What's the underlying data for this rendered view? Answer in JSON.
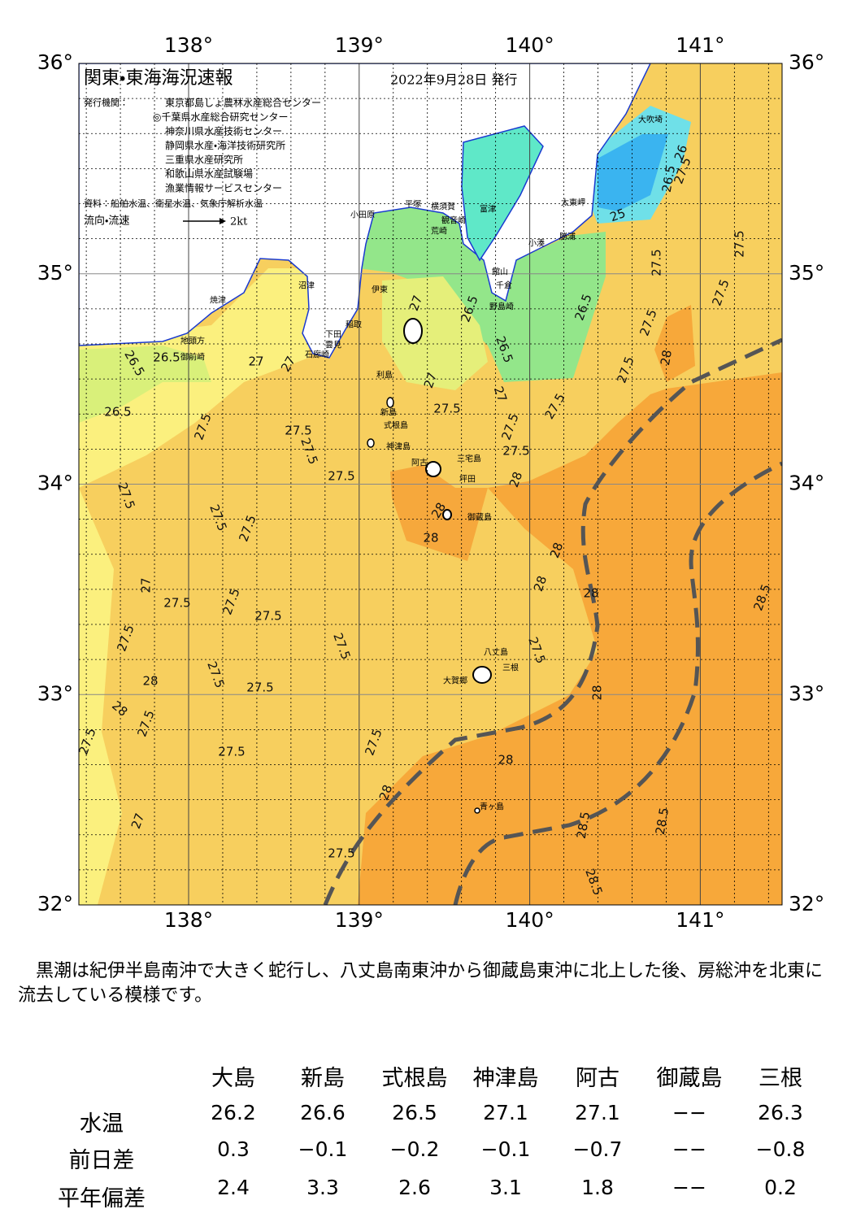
{
  "header": {
    "title": "関東・東海海況速報",
    "date": "2022年9月28日 発行",
    "issuer_label": "発行機関：",
    "issuers": [
      "東京都島しょ農林水産総合センター",
      "◎千葉県水産総合研究センター",
      "神奈川県水産技術センター",
      "静岡県水産・海洋技術研究所",
      "三重県水産研究所",
      "和歌山県水産試験場",
      "漁業情報サービスセンター"
    ],
    "source": "資料：船舶水温、衛星水温、気象庁解析水温",
    "legend": "流向・流速",
    "legend_scale": "2kt"
  },
  "map": {
    "lon_labels_top": [
      "138°",
      "139°",
      "140°",
      "141°"
    ],
    "lon_labels_bottom": [
      "138°",
      "139°",
      "140°",
      "141°"
    ],
    "lat_labels_left": [
      "36°",
      "35°",
      "34°",
      "33°",
      "32°"
    ],
    "lat_labels_right": [
      "36°",
      "35°",
      "34°",
      "33°",
      "32°"
    ],
    "places": [
      "大吹埼",
      "太東岬",
      "勝浦",
      "小湊",
      "富津",
      "横須賀",
      "観音崎",
      "荒崎",
      "平塚",
      "小田原",
      "館山",
      "千倉",
      "野島崎",
      "伊東",
      "稲取",
      "下田",
      "雲見",
      "石廊崎",
      "沼津",
      "焼津",
      "地頭方",
      "御前崎",
      "利島",
      "新島",
      "式根島",
      "神津島",
      "三宅島",
      "阿古",
      "坪田",
      "御蔵島",
      "八丈島",
      "三根",
      "大賀郷",
      "青ヶ島"
    ],
    "contour_labels": [
      "26.5",
      "26.5",
      "26.5",
      "27",
      "27",
      "27.5",
      "27.5",
      "27.5",
      "27.5",
      "27.5",
      "27.5",
      "27.5",
      "27.5",
      "27",
      "27.5",
      "27.5",
      "27.5",
      "27.5",
      "27.5",
      "27.5",
      "27.5",
      "27.5",
      "27.5",
      "27.5",
      "27.5",
      "28",
      "28",
      "28",
      "27",
      "28",
      "28",
      "28",
      "28",
      "28",
      "28",
      "28",
      "28",
      "28.5",
      "28.5",
      "28.5",
      "28.5",
      "27.5",
      "27.5",
      "27.5",
      "27.5",
      "27.5",
      "27.5",
      "27.5",
      "27.5",
      "27.5",
      "27.5",
      "27.5",
      "26.5",
      "26.5",
      "26.5",
      "27",
      "27",
      "27",
      "28",
      "26",
      "25",
      "26.5"
    ]
  },
  "summary": "黒潮は紀伊半島南沖で大きく蛇行し、八丈島南東沖から御蔵島東沖に北上した後、房総沖を北東に流去している模様です。",
  "table": {
    "columns": [
      "大島",
      "新島",
      "式根島",
      "神津島",
      "阿古",
      "御蔵島",
      "三根"
    ],
    "rows": [
      {
        "label": "水温",
        "cells": [
          "26.2",
          "26.6",
          "26.5",
          "27.1",
          "27.1",
          "−−",
          "26.3"
        ]
      },
      {
        "label": "前日差",
        "cells": [
          "0.3",
          "−0.1",
          "−0.2",
          "−0.1",
          "−0.7",
          "−−",
          "−0.8"
        ]
      },
      {
        "label": "平年偏差",
        "cells": [
          "2.4",
          "3.3",
          "2.6",
          "3.1",
          "1.8",
          "−−",
          "0.2"
        ]
      }
    ]
  }
}
